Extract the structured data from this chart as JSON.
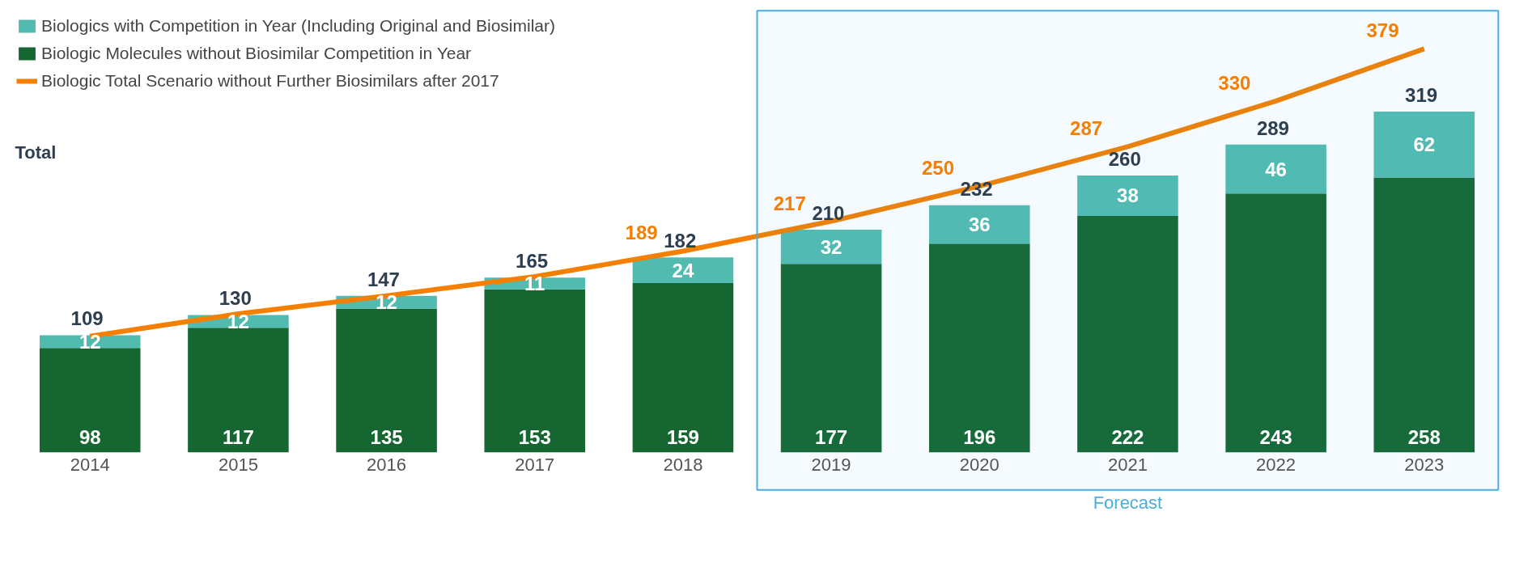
{
  "chart_data": {
    "type": "bar",
    "stacked": true,
    "categories": [
      "2014",
      "2015",
      "2016",
      "2017",
      "2018",
      "2019",
      "2020",
      "2021",
      "2022",
      "2023"
    ],
    "series": [
      {
        "name": "Biologic Molecules without Biosimilar Competition in Year",
        "color": "#156630",
        "values": [
          98,
          117,
          135,
          153,
          159,
          177,
          196,
          222,
          243,
          258
        ]
      },
      {
        "name": "Biologics with Competition in Year (Including Original and Biosimilar)",
        "color": "#52bbb0",
        "values": [
          12,
          12,
          12,
          11,
          24,
          32,
          36,
          38,
          46,
          62
        ]
      },
      {
        "name": "Biologic Total Scenario without Further Biosimilars after 2017",
        "type": "line",
        "color": "#f47f00",
        "values": [
          109,
          130,
          147,
          165,
          189,
          217,
          250,
          287,
          330,
          379
        ],
        "value_labels": [
          null,
          null,
          null,
          null,
          "189",
          "217",
          "250",
          "287",
          "330",
          "379"
        ]
      }
    ],
    "data_labels": true,
    "totals": [
      "109",
      "130",
      "147",
      "165",
      "182",
      "210",
      "232",
      "260",
      "289",
      "319"
    ],
    "bands": [
      {
        "axis": "x",
        "from": "2019",
        "to": "2023",
        "label": "Forecast",
        "color": "#4aaee0"
      }
    ],
    "annotations": [
      "Total"
    ],
    "legend": "top left",
    "grid": false
  }
}
